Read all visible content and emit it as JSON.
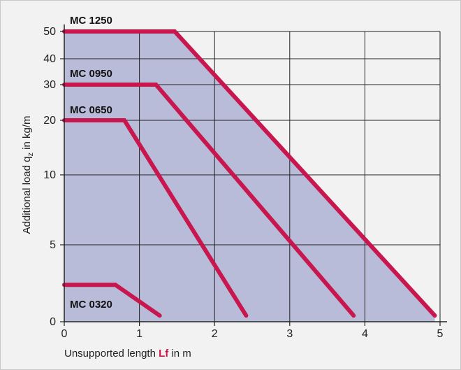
{
  "chart_data": {
    "type": "line",
    "xlabel_parts": {
      "before": "Unsupported length ",
      "highlight": "Lf",
      "after": " in m"
    },
    "ylabel_parts": {
      "before": "Additional load q",
      "subscript": "z",
      "after": " in kg/m"
    },
    "xlim": [
      0,
      5
    ],
    "x_ticks": [
      0,
      1,
      2,
      3,
      4,
      5
    ],
    "y_ticks": [
      0,
      5,
      10,
      20,
      30,
      40,
      50
    ],
    "y_scale": "nonlinear (0, 5, 10, 20, 30, 40, 50 at unequal spacing)",
    "grid": true,
    "series": [
      {
        "name": "MC 1250",
        "points": [
          [
            0,
            50
          ],
          [
            1.47,
            50
          ],
          [
            4.93,
            0.4
          ]
        ]
      },
      {
        "name": "MC 0950",
        "points": [
          [
            0,
            30
          ],
          [
            1.22,
            30
          ],
          [
            3.85,
            0.4
          ]
        ]
      },
      {
        "name": "MC 0650",
        "points": [
          [
            0,
            20
          ],
          [
            0.8,
            20
          ],
          [
            2.42,
            0.4
          ]
        ]
      },
      {
        "name": "MC 0320",
        "points": [
          [
            0,
            2.4
          ],
          [
            0.68,
            2.4
          ],
          [
            1.27,
            0.4
          ]
        ]
      }
    ],
    "colors": {
      "line": "#c8174e",
      "fill": "#b8bcd9",
      "highlight_text": "#c8174e",
      "background": "#f2f2f2"
    }
  }
}
